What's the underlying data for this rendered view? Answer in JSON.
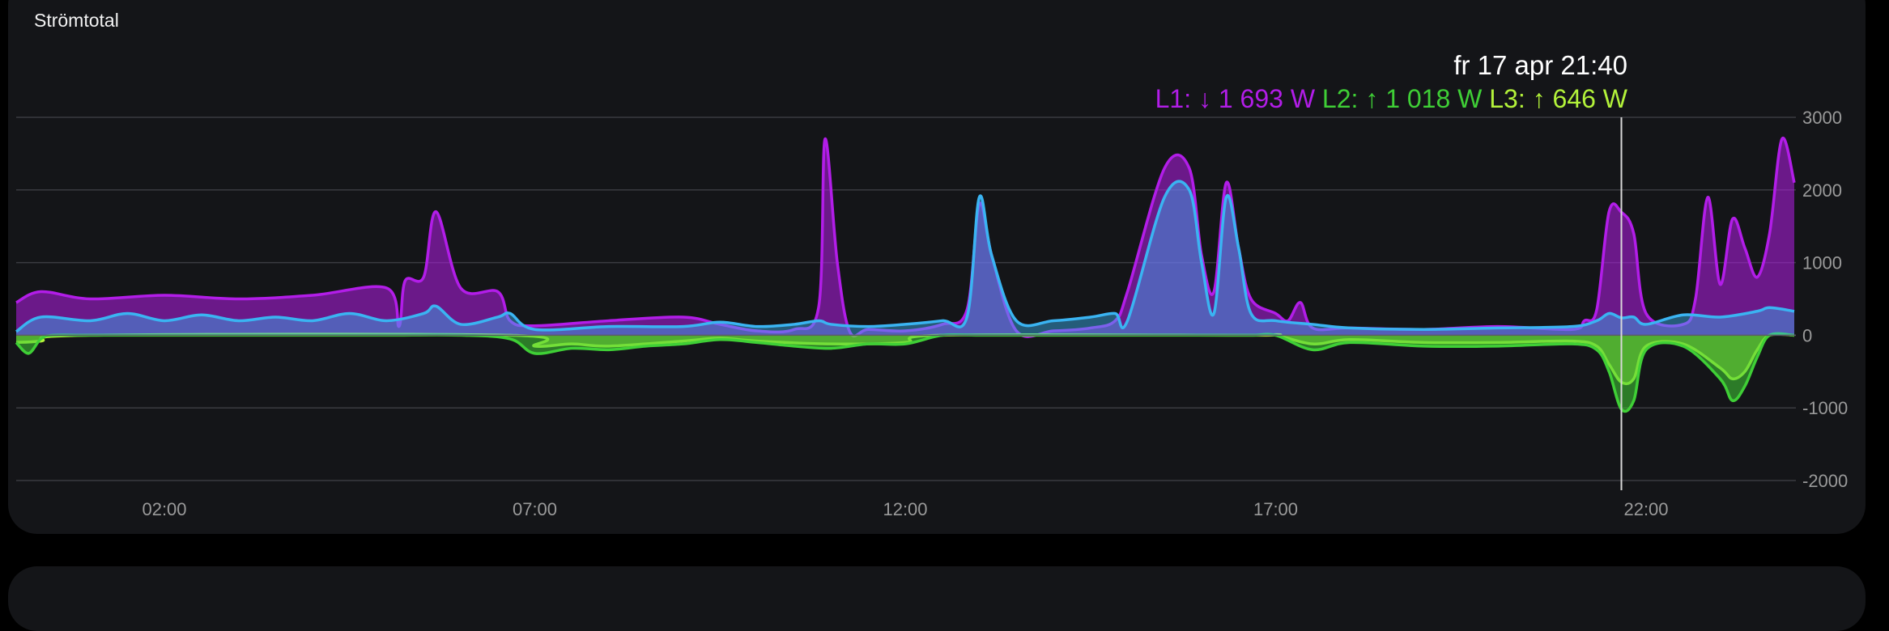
{
  "card": {
    "title": "Strömtotal"
  },
  "tooltip": {
    "time": "fr 17 apr 21:40",
    "items": [
      {
        "label": "L1:",
        "arrow": "↓",
        "value": "1 693 W",
        "color": "#b21de8"
      },
      {
        "label": "L2:",
        "arrow": "↑",
        "value": "1 018 W",
        "color": "#3fcf36"
      },
      {
        "label": "L3:",
        "arrow": "↑",
        "value": "646 W",
        "color": "#b3f23a"
      }
    ]
  },
  "chart_data": {
    "type": "area",
    "x_ticks": [
      "02:00",
      "07:00",
      "12:00",
      "17:00",
      "22:00"
    ],
    "y_ticks": [
      "3000",
      "2000",
      "1000",
      "0",
      "-1000",
      "-2000"
    ],
    "ylim": [
      -2000,
      3000
    ],
    "xlim": [
      "00:00",
      "24:00"
    ],
    "grid": true,
    "cursor_x": "21:40",
    "series": [
      {
        "name": "L1",
        "color": "#b21de8",
        "x": [
          "00:00",
          "00:20",
          "01:00",
          "02:00",
          "03:00",
          "04:00",
          "05:00",
          "05:10",
          "05:15",
          "05:30",
          "05:40",
          "06:00",
          "06:30",
          "06:40",
          "07:00",
          "08:00",
          "09:00",
          "09:30",
          "10:00",
          "10:30",
          "10:50",
          "10:55",
          "11:05",
          "11:15",
          "11:30",
          "12:00",
          "12:30",
          "12:50",
          "13:00",
          "13:10",
          "13:30",
          "14:00",
          "14:30",
          "14:50",
          "15:00",
          "15:30",
          "15:50",
          "16:00",
          "16:10",
          "16:20",
          "16:30",
          "16:40",
          "17:00",
          "17:10",
          "17:20",
          "17:30",
          "18:00",
          "19:00",
          "20:00",
          "21:00",
          "21:10",
          "21:20",
          "21:30",
          "21:40",
          "21:50",
          "22:00",
          "22:30",
          "22:40",
          "22:50",
          "23:00",
          "23:10",
          "23:20",
          "23:30",
          "23:40",
          "23:50",
          "24:00"
        ],
        "y": [
          450,
          600,
          500,
          550,
          500,
          550,
          650,
          120,
          750,
          800,
          1700,
          650,
          600,
          200,
          130,
          200,
          250,
          150,
          60,
          80,
          400,
          2700,
          1000,
          50,
          80,
          60,
          150,
          350,
          1800,
          1100,
          60,
          60,
          100,
          200,
          600,
          2300,
          2300,
          1100,
          600,
          2100,
          1200,
          500,
          300,
          200,
          450,
          100,
          100,
          80,
          120,
          80,
          200,
          350,
          1700,
          1693,
          1400,
          300,
          150,
          500,
          1900,
          700,
          1600,
          1200,
          800,
          1400,
          2700,
          2100
        ]
      },
      {
        "name": "L2",
        "color": "#3fcf36",
        "x": [
          "00:00",
          "00:10",
          "00:20",
          "00:30",
          "01:00",
          "02:00",
          "03:00",
          "04:00",
          "05:00",
          "06:00",
          "06:40",
          "07:00",
          "07:30",
          "08:00",
          "08:30",
          "09:00",
          "09:30",
          "10:00",
          "10:30",
          "11:00",
          "11:30",
          "12:00",
          "12:30",
          "13:00",
          "14:00",
          "15:00",
          "16:00",
          "16:40",
          "17:00",
          "17:30",
          "18:00",
          "19:00",
          "20:00",
          "21:00",
          "21:20",
          "21:30",
          "21:40",
          "21:50",
          "22:00",
          "22:30",
          "23:00",
          "23:10",
          "23:20",
          "23:30",
          "23:40",
          "24:00"
        ],
        "y": [
          -100,
          -250,
          -50,
          0,
          0,
          0,
          0,
          0,
          0,
          0,
          -50,
          -250,
          -180,
          -200,
          -150,
          -120,
          -60,
          -100,
          -150,
          -180,
          -120,
          -120,
          0,
          0,
          0,
          0,
          0,
          0,
          0,
          -200,
          -100,
          -150,
          -150,
          -120,
          -200,
          -500,
          -1018,
          -900,
          -200,
          -150,
          -600,
          -900,
          -700,
          -300,
          0,
          0
        ]
      },
      {
        "name": "L3",
        "color": "#b3f23a",
        "x": [
          "00:00",
          "00:20",
          "01:00",
          "06:40",
          "07:00",
          "07:30",
          "08:00",
          "09:00",
          "09:30",
          "10:00",
          "11:00",
          "12:00",
          "12:30",
          "16:40",
          "17:00",
          "17:30",
          "18:00",
          "19:00",
          "20:00",
          "21:00",
          "21:20",
          "21:30",
          "21:40",
          "21:50",
          "22:00",
          "22:30",
          "23:00",
          "23:10",
          "23:20",
          "23:30",
          "23:40",
          "24:00"
        ],
        "y": [
          -100,
          -80,
          0,
          0,
          -150,
          -120,
          -150,
          -80,
          -40,
          -80,
          -120,
          -100,
          0,
          0,
          0,
          -120,
          -60,
          -100,
          -100,
          -80,
          -150,
          -400,
          -646,
          -600,
          -150,
          -120,
          -450,
          -600,
          -500,
          -200,
          0,
          0
        ]
      },
      {
        "name": "blue",
        "color": "#3ab4f2",
        "x": [
          "00:00",
          "00:20",
          "01:00",
          "01:30",
          "02:00",
          "02:30",
          "03:00",
          "03:30",
          "04:00",
          "04:30",
          "05:00",
          "05:30",
          "05:40",
          "06:00",
          "06:30",
          "06:40",
          "07:00",
          "08:00",
          "09:00",
          "09:30",
          "10:00",
          "10:30",
          "10:50",
          "11:00",
          "11:30",
          "12:00",
          "12:30",
          "12:50",
          "13:00",
          "13:10",
          "13:30",
          "14:00",
          "14:30",
          "14:50",
          "15:00",
          "15:30",
          "15:50",
          "16:00",
          "16:10",
          "16:20",
          "16:30",
          "16:40",
          "17:00",
          "17:30",
          "18:00",
          "19:00",
          "20:00",
          "21:00",
          "21:20",
          "21:30",
          "21:40",
          "21:50",
          "22:00",
          "22:30",
          "23:00",
          "23:30",
          "23:40",
          "24:00"
        ],
        "y": [
          50,
          250,
          200,
          300,
          200,
          280,
          200,
          250,
          200,
          300,
          200,
          300,
          400,
          150,
          250,
          300,
          80,
          120,
          120,
          180,
          120,
          150,
          200,
          150,
          120,
          150,
          200,
          250,
          1900,
          1100,
          200,
          200,
          250,
          300,
          200,
          1900,
          2000,
          1000,
          300,
          1900,
          1200,
          300,
          200,
          150,
          100,
          80,
          100,
          120,
          200,
          300,
          240,
          250,
          150,
          280,
          250,
          330,
          380,
          330
        ]
      }
    ]
  }
}
